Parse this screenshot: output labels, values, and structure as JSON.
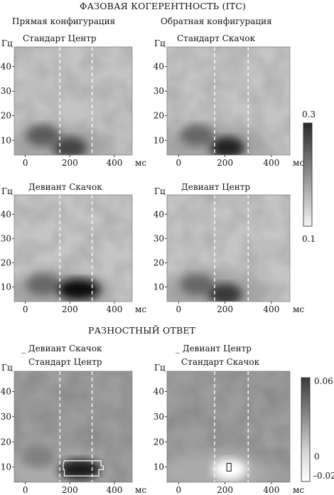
{
  "main_title": "ФАЗОВАЯ КОГЕРЕНТНОСТЬ (ITC)",
  "section2_title": "РАЗНОСТНЫЙ ОТВЕТ",
  "direct_config": "Прямая конфигурация",
  "reverse_config": "Обратная конфигурация",
  "x_unit": "мс",
  "y_unit": "Гц",
  "colorbar_itc": {
    "max": "0.3",
    "min": "0.1"
  },
  "colorbar_diff": {
    "max": "0.06",
    "zero": "0",
    "min": "–0.02"
  },
  "chart_data": [
    {
      "type": "heatmap",
      "panel": "std-center",
      "title": "Стандарт Центр",
      "xlabel": "мс",
      "ylabel": "Гц",
      "xlim": [
        -50,
        480
      ],
      "ylim": [
        4,
        48
      ],
      "xticks": [
        0,
        200,
        400
      ],
      "yticks": [
        10,
        20,
        30,
        40
      ],
      "stimulus_lines_ms": [
        155,
        300
      ],
      "colormap": "grayscale",
      "crange": [
        0.1,
        0.3
      ],
      "peaks": [
        {
          "x_ms": 80,
          "y_hz": 12,
          "v": 0.23
        },
        {
          "x_ms": 200,
          "y_hz": 7,
          "v": 0.25
        }
      ]
    },
    {
      "type": "heatmap",
      "panel": "std-jump",
      "title": "Стандарт Скачок",
      "xlabel": "мс",
      "ylabel": "Гц",
      "xlim": [
        -50,
        480
      ],
      "ylim": [
        4,
        48
      ],
      "xticks": [
        0,
        200,
        400
      ],
      "yticks": [
        10,
        20,
        30,
        40
      ],
      "stimulus_lines_ms": [
        155,
        300
      ],
      "colormap": "grayscale",
      "crange": [
        0.1,
        0.3
      ],
      "peaks": [
        {
          "x_ms": 80,
          "y_hz": 12,
          "v": 0.22
        },
        {
          "x_ms": 210,
          "y_hz": 7,
          "v": 0.28
        }
      ]
    },
    {
      "type": "heatmap",
      "panel": "dev-jump",
      "title": "Девиант Скачок",
      "xlabel": "мс",
      "ylabel": "Гц",
      "xlim": [
        -50,
        480
      ],
      "ylim": [
        4,
        48
      ],
      "xticks": [
        0,
        200,
        400
      ],
      "yticks": [
        10,
        20,
        30,
        40
      ],
      "stimulus_lines_ms": [
        155,
        300
      ],
      "colormap": "grayscale",
      "crange": [
        0.1,
        0.3
      ],
      "peaks": [
        {
          "x_ms": 80,
          "y_hz": 11,
          "v": 0.22
        },
        {
          "x_ms": 240,
          "y_hz": 9,
          "v": 0.3
        }
      ]
    },
    {
      "type": "heatmap",
      "panel": "dev-center",
      "title": "Девиант Центр",
      "xlabel": "мс",
      "ylabel": "Гц",
      "xlim": [
        -50,
        480
      ],
      "ylim": [
        4,
        48
      ],
      "xticks": [
        0,
        200,
        400
      ],
      "yticks": [
        10,
        20,
        30,
        40
      ],
      "stimulus_lines_ms": [
        155,
        300
      ],
      "colormap": "grayscale",
      "crange": [
        0.1,
        0.3
      ],
      "peaks": [
        {
          "x_ms": 80,
          "y_hz": 11,
          "v": 0.22
        },
        {
          "x_ms": 200,
          "y_hz": 7,
          "v": 0.26
        }
      ]
    },
    {
      "type": "heatmap",
      "panel": "diff-1",
      "title_top": "Девиант Скачок",
      "title_bottom": "Стандарт Центр",
      "xlabel": "мс",
      "ylabel": "Гц",
      "xlim": [
        -50,
        480
      ],
      "ylim": [
        4,
        48
      ],
      "xticks": [
        0,
        200,
        400
      ],
      "yticks": [
        10,
        20,
        30,
        40
      ],
      "stimulus_lines_ms": [
        155,
        300
      ],
      "colormap": "grayscale",
      "crange": [
        -0.02,
        0.06
      ],
      "peaks": [
        {
          "x_ms": 245,
          "y_hz": 9,
          "v": 0.06
        },
        {
          "x_ms": 60,
          "y_hz": 14,
          "v": 0.025
        }
      ],
      "significant_region_outlined": true
    },
    {
      "type": "heatmap",
      "panel": "diff-2",
      "title_top": "Девиант Центр",
      "title_bottom": "Стандарт Скачок",
      "xlabel": "мс",
      "ylabel": "Гц",
      "xlim": [
        -50,
        480
      ],
      "ylim": [
        4,
        48
      ],
      "xticks": [
        0,
        200,
        400
      ],
      "yticks": [
        10,
        20,
        30,
        40
      ],
      "stimulus_lines_ms": [
        155,
        300
      ],
      "colormap": "grayscale",
      "crange": [
        -0.02,
        0.06
      ],
      "peaks": [
        {
          "x_ms": 220,
          "y_hz": 9,
          "v": -0.02
        }
      ],
      "significant_region_outlined": true
    }
  ]
}
